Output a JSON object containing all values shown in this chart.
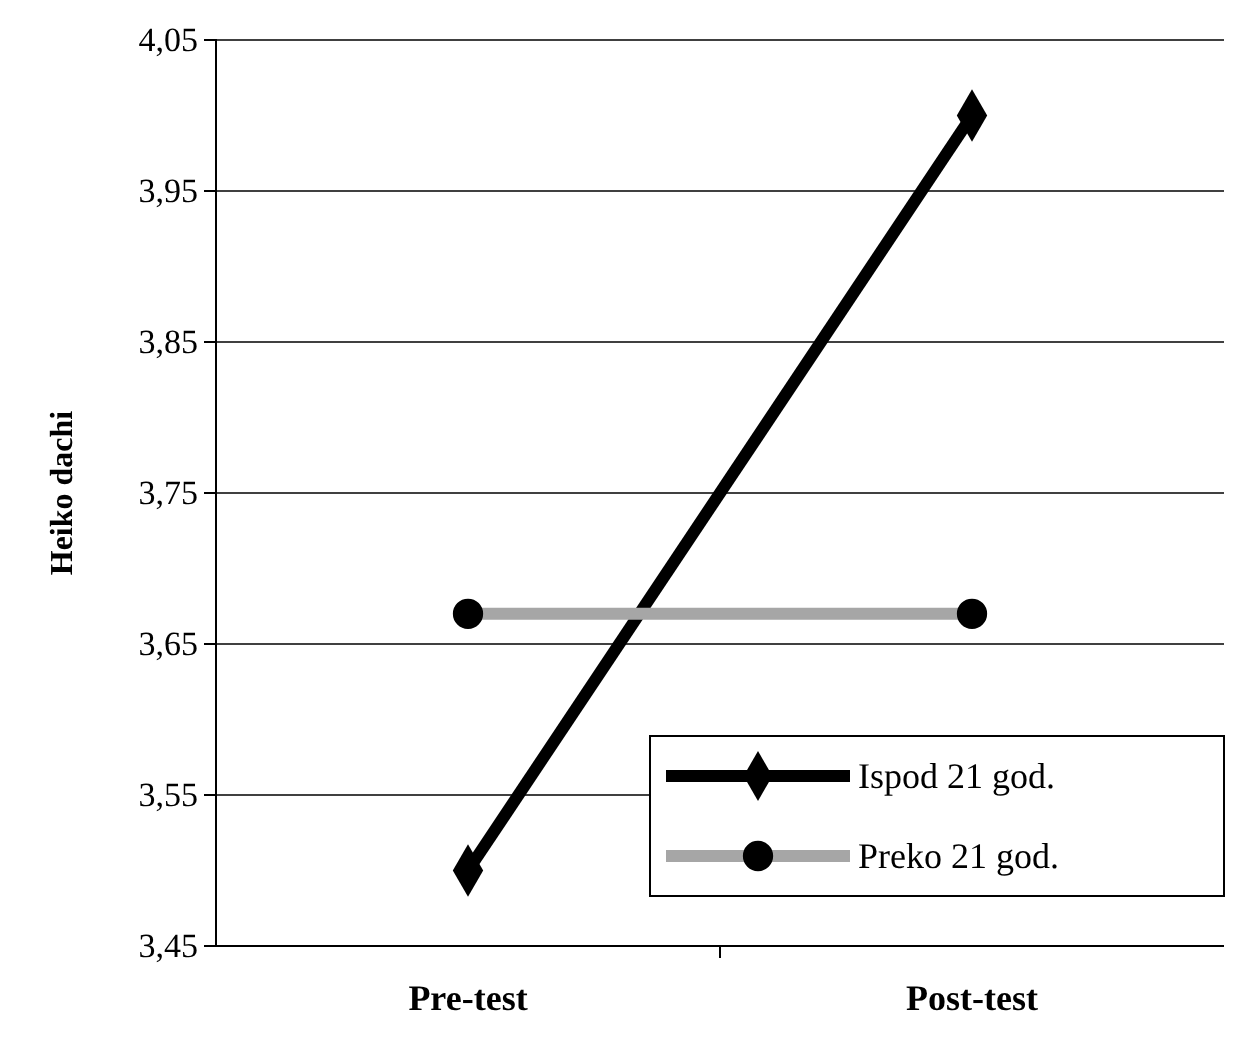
{
  "chart_data": {
    "type": "line",
    "ylabel": "Heiko dachi",
    "categories": [
      "Pre-test",
      "Post-test"
    ],
    "series": [
      {
        "name": "Ispod 21 god.",
        "color": "#000000",
        "marker": "diamond",
        "values": [
          3.5,
          4.0
        ]
      },
      {
        "name": "Preko 21 god.",
        "color": "#a6a6a6",
        "marker": "circle",
        "values": [
          3.67,
          3.67
        ]
      }
    ],
    "ylim": [
      3.45,
      4.05
    ],
    "yticks": [
      {
        "value": 3.45,
        "label": "3,45"
      },
      {
        "value": 3.55,
        "label": "3,55"
      },
      {
        "value": 3.65,
        "label": "3,65"
      },
      {
        "value": 3.75,
        "label": "3,75"
      },
      {
        "value": 3.85,
        "label": "3,85"
      },
      {
        "value": 3.95,
        "label": "3,95"
      },
      {
        "value": 4.05,
        "label": "4,05"
      }
    ],
    "grid": "y",
    "legend": "bottom right",
    "line_style": "solid"
  }
}
